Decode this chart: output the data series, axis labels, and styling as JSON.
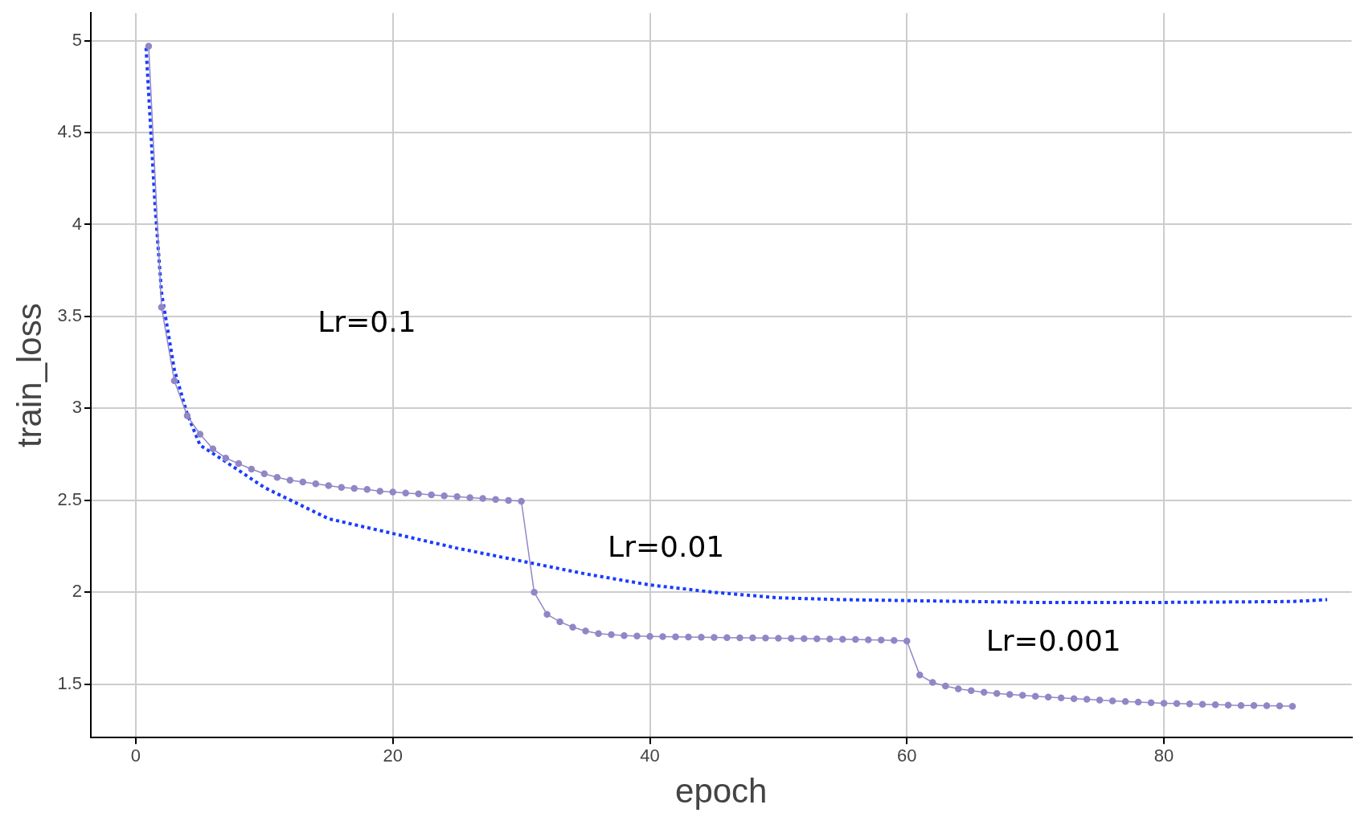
{
  "chart_data": {
    "type": "line",
    "xlabel": "epoch",
    "ylabel": "train_loss",
    "xlim": [
      -3.5,
      94.6
    ],
    "ylim": [
      1.21,
      5.15
    ],
    "xticks": [
      0,
      20,
      40,
      60,
      80
    ],
    "yticks": [
      1.5,
      2,
      2.5,
      3,
      3.5,
      4,
      4.5,
      5
    ],
    "grid": true,
    "legend": false,
    "series": [
      {
        "color": "#9187c6",
        "marker": "circle",
        "line_style": "solid",
        "x": [
          1,
          2,
          3,
          4,
          5,
          6,
          7,
          8,
          9,
          10,
          11,
          12,
          13,
          14,
          15,
          16,
          17,
          18,
          19,
          20,
          21,
          22,
          23,
          24,
          25,
          26,
          27,
          28,
          29,
          30,
          31,
          32,
          33,
          34,
          35,
          36,
          37,
          38,
          39,
          40,
          41,
          42,
          43,
          44,
          45,
          46,
          47,
          48,
          49,
          50,
          51,
          52,
          53,
          54,
          55,
          56,
          57,
          58,
          59,
          60,
          61,
          62,
          63,
          64,
          65,
          66,
          67,
          68,
          69,
          70,
          71,
          72,
          73,
          74,
          75,
          76,
          77,
          78,
          79,
          80,
          81,
          82,
          83,
          84,
          85,
          86,
          87,
          88,
          89,
          90
        ],
        "values": [
          4.97,
          3.55,
          3.15,
          2.96,
          2.86,
          2.78,
          2.73,
          2.7,
          2.67,
          2.645,
          2.625,
          2.61,
          2.6,
          2.59,
          2.58,
          2.57,
          2.565,
          2.56,
          2.55,
          2.545,
          2.54,
          2.535,
          2.53,
          2.525,
          2.52,
          2.515,
          2.51,
          2.505,
          2.5,
          2.495,
          2.0,
          1.88,
          1.84,
          1.81,
          1.79,
          1.775,
          1.77,
          1.765,
          1.762,
          1.76,
          1.759,
          1.758,
          1.757,
          1.756,
          1.755,
          1.754,
          1.753,
          1.752,
          1.751,
          1.75,
          1.749,
          1.748,
          1.747,
          1.746,
          1.745,
          1.744,
          1.742,
          1.74,
          1.738,
          1.735,
          1.55,
          1.51,
          1.49,
          1.475,
          1.465,
          1.457,
          1.45,
          1.445,
          1.44,
          1.435,
          1.43,
          1.426,
          1.422,
          1.418,
          1.414,
          1.41,
          1.406,
          1.403,
          1.4,
          1.397,
          1.395,
          1.393,
          1.391,
          1.389,
          1.387,
          1.385,
          1.384,
          1.383,
          1.382,
          1.38
        ]
      },
      {
        "color": "#1a3cff",
        "marker": "none",
        "line_style": "dotted",
        "x": [
          0.8,
          1.5,
          2,
          3,
          4,
          5,
          7,
          10,
          15,
          20,
          25,
          30,
          35,
          40,
          45,
          50,
          55,
          60,
          70,
          80,
          90,
          92.7
        ],
        "values": [
          4.96,
          4.1,
          3.63,
          3.21,
          2.97,
          2.8,
          2.71,
          2.57,
          2.4,
          2.32,
          2.24,
          2.17,
          2.1,
          2.04,
          2.0,
          1.97,
          1.96,
          1.955,
          1.945,
          1.945,
          1.95,
          1.96
        ]
      }
    ],
    "annotations": [
      "Lr=0.1",
      "Lr=0.01",
      "Lr=0.001"
    ]
  }
}
